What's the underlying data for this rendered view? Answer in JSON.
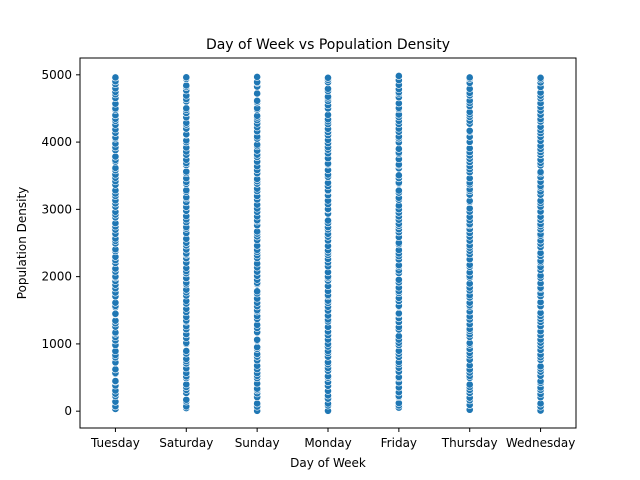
{
  "chart_data": {
    "type": "scatter",
    "title": "Day of Week vs Population Density",
    "xlabel": "Day of Week",
    "ylabel": "Population Density",
    "categories": [
      "Tuesday",
      "Saturday",
      "Sunday",
      "Monday",
      "Friday",
      "Thursday",
      "Wednesday"
    ],
    "ylim": [
      -250,
      5250
    ],
    "yticks": [
      0,
      1000,
      2000,
      3000,
      4000,
      5000
    ],
    "yrange_per_category": [
      0,
      5000
    ],
    "points_per_category": 90,
    "marker_color": "#1f77b4",
    "marker_edge_color": "#ffffff",
    "grid": false,
    "legend": "none"
  }
}
